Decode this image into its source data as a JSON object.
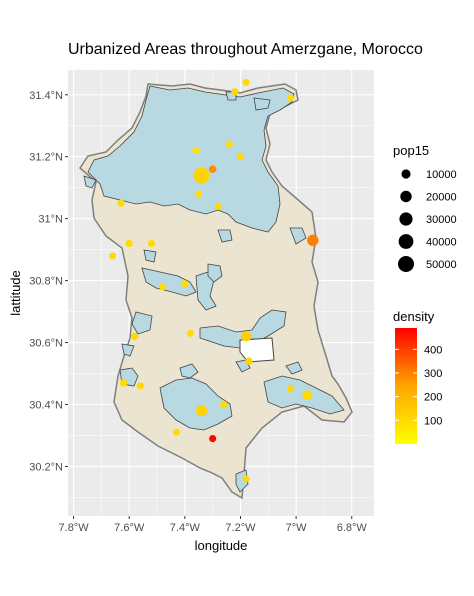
{
  "map": {
    "title": "Urbanized Areas throughout Amerzgane, Morocco",
    "xlabel": "longitude",
    "ylabel": "lattitude",
    "x_ticks": [
      {
        "value": -7.8,
        "label": "7.8°W"
      },
      {
        "value": -7.6,
        "label": "7.6°W"
      },
      {
        "value": -7.4,
        "label": "7.4°W"
      },
      {
        "value": -7.2,
        "label": "7.2°W"
      },
      {
        "value": -7.0,
        "label": "7°W"
      },
      {
        "value": -6.8,
        "label": "6.8°W"
      }
    ],
    "y_ticks": [
      {
        "value": 30.2,
        "label": "30.2°N"
      },
      {
        "value": 30.4,
        "label": "30.4°N"
      },
      {
        "value": 30.6,
        "label": "30.6°N"
      },
      {
        "value": 30.8,
        "label": "30.8°N"
      },
      {
        "value": 31.0,
        "label": "31°N"
      },
      {
        "value": 31.2,
        "label": "31.2°N"
      },
      {
        "value": 31.4,
        "label": "31.4°N"
      }
    ],
    "xlim": [
      -7.82,
      -6.72
    ],
    "ylim": [
      30.04,
      31.48
    ],
    "colors": {
      "panel": "#ebebeb",
      "grid": "#ffffff",
      "region_fill": "#ebe4d0",
      "region_border": "#7f7f7f",
      "urban_fill": "#b8d8e2",
      "urban_border": "#444444"
    },
    "size_legend": {
      "title": "pop15",
      "entries": [
        {
          "label": "10000",
          "value": 10000
        },
        {
          "label": "20000",
          "value": 20000
        },
        {
          "label": "30000",
          "value": 30000
        },
        {
          "label": "40000",
          "value": 40000
        },
        {
          "label": "50000",
          "value": 50000
        }
      ]
    },
    "color_legend": {
      "title": "density",
      "labels": [
        {
          "label": "100",
          "value": 100
        },
        {
          "label": "200",
          "value": 200
        },
        {
          "label": "300",
          "value": 300
        },
        {
          "label": "400",
          "value": 400
        }
      ],
      "range": [
        0,
        490
      ],
      "low_color": "#ffff00",
      "mid_color": "#ffa500",
      "high_color": "#ff0000"
    },
    "points": [
      {
        "lon": -7.34,
        "lat": 31.14,
        "pop": 50000,
        "density": 120
      },
      {
        "lon": -7.3,
        "lat": 31.16,
        "pop": 5000,
        "density": 280
      },
      {
        "lon": -7.36,
        "lat": 31.22,
        "pop": 4000,
        "density": 80
      },
      {
        "lon": -7.35,
        "lat": 31.08,
        "pop": 4000,
        "density": 90
      },
      {
        "lon": -7.28,
        "lat": 31.04,
        "pop": 4000,
        "density": 100
      },
      {
        "lon": -7.24,
        "lat": 31.24,
        "pop": 4000,
        "density": 90
      },
      {
        "lon": -7.2,
        "lat": 31.2,
        "pop": 4000,
        "density": 100
      },
      {
        "lon": -6.94,
        "lat": 30.93,
        "pop": 20000,
        "density": 300
      },
      {
        "lon": -7.18,
        "lat": 30.62,
        "pop": 15000,
        "density": 130
      },
      {
        "lon": -7.34,
        "lat": 30.38,
        "pop": 18000,
        "density": 120
      },
      {
        "lon": -6.96,
        "lat": 30.43,
        "pop": 12000,
        "density": 100
      },
      {
        "lon": -7.3,
        "lat": 30.29,
        "pop": 4000,
        "density": 480
      },
      {
        "lon": -7.62,
        "lat": 30.47,
        "pop": 5000,
        "density": 100
      },
      {
        "lon": -7.58,
        "lat": 30.62,
        "pop": 5000,
        "density": 100
      },
      {
        "lon": -7.6,
        "lat": 30.92,
        "pop": 4000,
        "density": 100
      },
      {
        "lon": -7.52,
        "lat": 30.92,
        "pop": 4000,
        "density": 100
      },
      {
        "lon": -7.48,
        "lat": 30.78,
        "pop": 4000,
        "density": 90
      },
      {
        "lon": -7.4,
        "lat": 30.79,
        "pop": 4000,
        "density": 90
      },
      {
        "lon": -7.38,
        "lat": 30.63,
        "pop": 4000,
        "density": 90
      },
      {
        "lon": -7.17,
        "lat": 30.54,
        "pop": 5000,
        "density": 110
      },
      {
        "lon": -7.02,
        "lat": 30.45,
        "pop": 4000,
        "density": 100
      },
      {
        "lon": -7.18,
        "lat": 30.16,
        "pop": 4000,
        "density": 100
      },
      {
        "lon": -7.18,
        "lat": 31.44,
        "pop": 4000,
        "density": 100
      },
      {
        "lon": -7.22,
        "lat": 31.41,
        "pop": 4000,
        "density": 100
      },
      {
        "lon": -7.02,
        "lat": 31.39,
        "pop": 4000,
        "density": 100
      },
      {
        "lon": -7.63,
        "lat": 31.05,
        "pop": 4000,
        "density": 100
      },
      {
        "lon": -7.66,
        "lat": 30.88,
        "pop": 4000,
        "density": 100
      },
      {
        "lon": -7.56,
        "lat": 30.46,
        "pop": 4000,
        "density": 100
      },
      {
        "lon": -7.43,
        "lat": 30.31,
        "pop": 4000,
        "density": 100
      },
      {
        "lon": -7.26,
        "lat": 30.4,
        "pop": 5000,
        "density": 100
      }
    ]
  }
}
